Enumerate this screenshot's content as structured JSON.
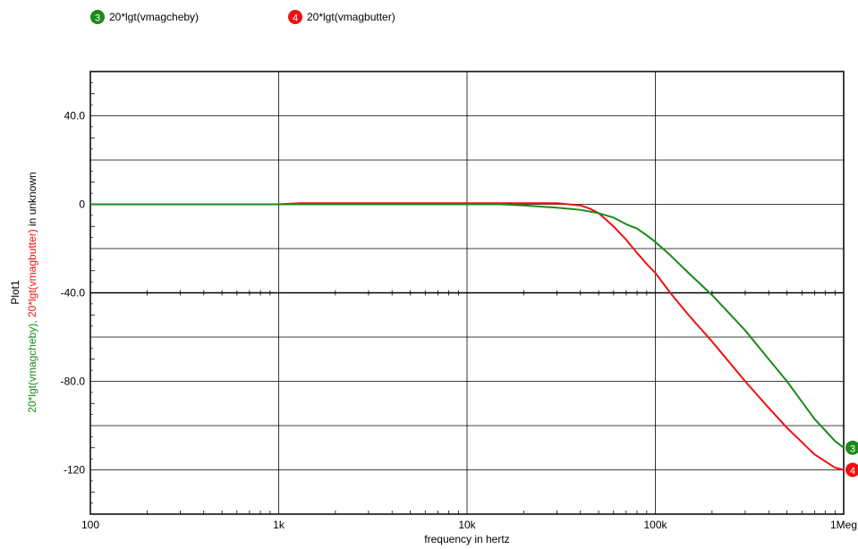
{
  "chart_data": {
    "type": "line",
    "plot_label": "Plot1",
    "xlabel": "frequency in hertz",
    "ylabel_parts": [
      {
        "text": "20*lgt(vmagcheby),",
        "color": "#1a8a1a"
      },
      {
        "text": "20*lgt(vmagbutter)",
        "color": "#ee1111"
      },
      {
        "text": "in unknown",
        "color": "#000000"
      }
    ],
    "x_scale": "log",
    "xlim": [
      100,
      1000000
    ],
    "ylim": [
      -140,
      60
    ],
    "x_ticks": [
      {
        "value": 100,
        "label": "100"
      },
      {
        "value": 1000,
        "label": "1k"
      },
      {
        "value": 10000,
        "label": "10k"
      },
      {
        "value": 100000,
        "label": "100k"
      },
      {
        "value": 1000000,
        "label": "1Meg"
      }
    ],
    "y_ticks": [
      {
        "value": 40,
        "label": "40.0"
      },
      {
        "value": 0,
        "label": "0"
      },
      {
        "value": -40,
        "label": "-40.0"
      },
      {
        "value": -80,
        "label": "-80.0"
      },
      {
        "value": -120,
        "label": "-120"
      }
    ],
    "y_gridlines": [
      40,
      20,
      0,
      -20,
      -40,
      -60,
      -80,
      -100,
      -120
    ],
    "grid": true,
    "legend_position": "top-left",
    "series": [
      {
        "name": "20*lgt(vmagcheby)",
        "marker": "3",
        "color": "#1a8a1a",
        "points": [
          [
            100,
            0
          ],
          [
            1000,
            0
          ],
          [
            1300,
            0
          ],
          [
            5000,
            0
          ],
          [
            10000,
            0
          ],
          [
            15000,
            0
          ],
          [
            20000,
            -0.5
          ],
          [
            30000,
            -1.5
          ],
          [
            40000,
            -2.5
          ],
          [
            50000,
            -4
          ],
          [
            60000,
            -6
          ],
          [
            70000,
            -9
          ],
          [
            80000,
            -11
          ],
          [
            90000,
            -14
          ],
          [
            100000,
            -17
          ],
          [
            120000,
            -23
          ],
          [
            150000,
            -31
          ],
          [
            200000,
            -41
          ],
          [
            300000,
            -57
          ],
          [
            400000,
            -70
          ],
          [
            500000,
            -80
          ],
          [
            700000,
            -97
          ],
          [
            900000,
            -107
          ],
          [
            1000000,
            -110
          ]
        ]
      },
      {
        "name": "20*lgt(vmagbutter)",
        "marker": "4",
        "color": "#ee1111",
        "points": [
          [
            100,
            0
          ],
          [
            1000,
            0
          ],
          [
            1300,
            0.5
          ],
          [
            5000,
            0.5
          ],
          [
            10000,
            0.5
          ],
          [
            20000,
            0.5
          ],
          [
            30000,
            0.5
          ],
          [
            40000,
            -0.5
          ],
          [
            45000,
            -2
          ],
          [
            50000,
            -4
          ],
          [
            60000,
            -10
          ],
          [
            70000,
            -16
          ],
          [
            80000,
            -22
          ],
          [
            90000,
            -27
          ],
          [
            100000,
            -31
          ],
          [
            120000,
            -40
          ],
          [
            150000,
            -50
          ],
          [
            200000,
            -62
          ],
          [
            300000,
            -80
          ],
          [
            400000,
            -92
          ],
          [
            500000,
            -101
          ],
          [
            700000,
            -113
          ],
          [
            900000,
            -119
          ],
          [
            1000000,
            -120
          ]
        ]
      }
    ]
  }
}
